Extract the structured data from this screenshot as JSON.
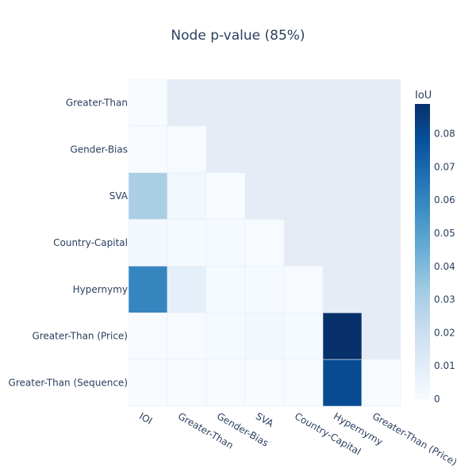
{
  "chart_data": {
    "type": "heatmap",
    "title": "Node p-value (85%)",
    "x_categories": [
      "IOI",
      "Greater-Than",
      "Gender-Bias",
      "SVA",
      "Country-Capital",
      "Hypernymy",
      "Greater-Than (Price)"
    ],
    "y_categories": [
      "Greater-Than",
      "Gender-Bias",
      "SVA",
      "Country-Capital",
      "Hypernymy",
      "Greater-Than (Price)",
      "Greater-Than (Sequence)"
    ],
    "z": [
      [
        0.0,
        null,
        null,
        null,
        null,
        null,
        null
      ],
      [
        0.0,
        0.0,
        null,
        null,
        null,
        null,
        null
      ],
      [
        0.03,
        0.003,
        0.0,
        null,
        null,
        null,
        null
      ],
      [
        0.002,
        0.001,
        0.001,
        0.0,
        null,
        null,
        null
      ],
      [
        0.06,
        0.008,
        0.001,
        0.001,
        0.0,
        null,
        null
      ],
      [
        0.0,
        0.0,
        0.001,
        0.002,
        0.001,
        0.089,
        null
      ],
      [
        0.0,
        0.0,
        0.0,
        0.0,
        0.0,
        0.08,
        0.0
      ]
    ],
    "zmin": 0,
    "zmax": 0.089,
    "colorbar": {
      "title": "IoU",
      "ticks": [
        0,
        0.01,
        0.02,
        0.03,
        0.04,
        0.05,
        0.06,
        0.07,
        0.08
      ]
    },
    "colorscale": "Blues",
    "background_color": "#e5ecf6",
    "grid": false
  }
}
